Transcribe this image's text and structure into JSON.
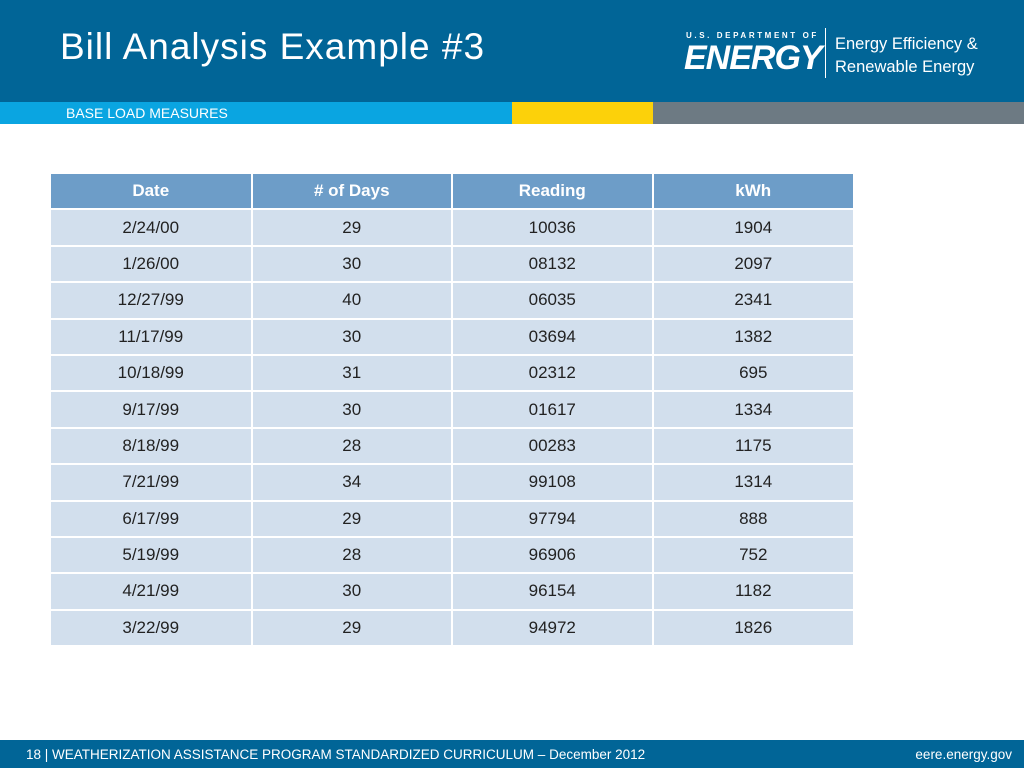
{
  "header": {
    "title": "Bill Analysis Example #3",
    "logo_small": "U.S. DEPARTMENT OF",
    "logo_big": "ENERGY",
    "office_line1": "Energy Efficiency &",
    "office_line2": "Renewable Energy"
  },
  "band": {
    "subtitle": "BASE LOAD MEASURES",
    "colors": {
      "blue": "#0aa5e1",
      "yellow": "#fcd10a",
      "gray": "#6d7a83"
    }
  },
  "table": {
    "columns": [
      "Date",
      "# of Days",
      "Reading",
      "kWh"
    ],
    "rows": [
      [
        "2/24/00",
        "29",
        "10036",
        "1904"
      ],
      [
        "1/26/00",
        "30",
        "08132",
        "2097"
      ],
      [
        "12/27/99",
        "40",
        "06035",
        "2341"
      ],
      [
        "11/17/99",
        "30",
        "03694",
        "1382"
      ],
      [
        "10/18/99",
        "31",
        "02312",
        "695"
      ],
      [
        "9/17/99",
        "30",
        "01617",
        "1334"
      ],
      [
        "8/18/99",
        "28",
        "00283",
        "1175"
      ],
      [
        "7/21/99",
        "34",
        "99108",
        "1314"
      ],
      [
        "6/17/99",
        "29",
        "97794",
        "888"
      ],
      [
        "5/19/99",
        "28",
        "96906",
        "752"
      ],
      [
        "4/21/99",
        "30",
        "96154",
        "1182"
      ],
      [
        "3/22/99",
        "29",
        "94972",
        "1826"
      ]
    ]
  },
  "footer": {
    "left": "18 | WEATHERIZATION ASSISTANCE PROGRAM STANDARDIZED CURRICULUM – December 2012",
    "right": "eere.energy.gov"
  },
  "colors": {
    "header_bg": "#016597",
    "table_header_bg": "#6d9dc8",
    "table_cell_bg": "#d2dfed"
  }
}
